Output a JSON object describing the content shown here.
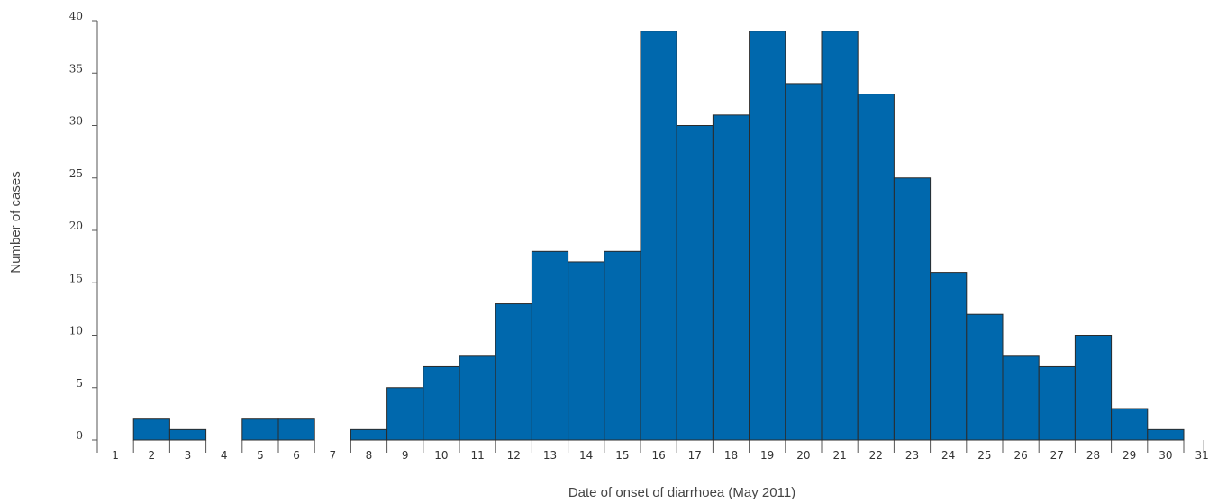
{
  "chart_data": {
    "type": "bar",
    "title": "",
    "xlabel": "Date of onset of diarrhoea (May 2011)",
    "ylabel": "Number of cases",
    "ylim": [
      0,
      40
    ],
    "yticks": [
      0,
      5,
      10,
      15,
      20,
      25,
      30,
      35,
      40
    ],
    "categories": [
      "1",
      "2",
      "3",
      "4",
      "5",
      "6",
      "7",
      "8",
      "9",
      "10",
      "11",
      "12",
      "13",
      "14",
      "15",
      "16",
      "17",
      "18",
      "19",
      "20",
      "21",
      "22",
      "23",
      "24",
      "25",
      "26",
      "27",
      "28",
      "29",
      "30",
      "31"
    ],
    "values": [
      0,
      2,
      1,
      0,
      2,
      2,
      0,
      1,
      5,
      7,
      8,
      13,
      18,
      17,
      18,
      39,
      30,
      31,
      39,
      34,
      39,
      33,
      25,
      16,
      12,
      8,
      7,
      10,
      3,
      1,
      null
    ],
    "grid": false,
    "legend": "none",
    "colors": {
      "bar": "#0068ad",
      "bar_edge": "#2b2b2b",
      "axis": "#555555"
    }
  }
}
